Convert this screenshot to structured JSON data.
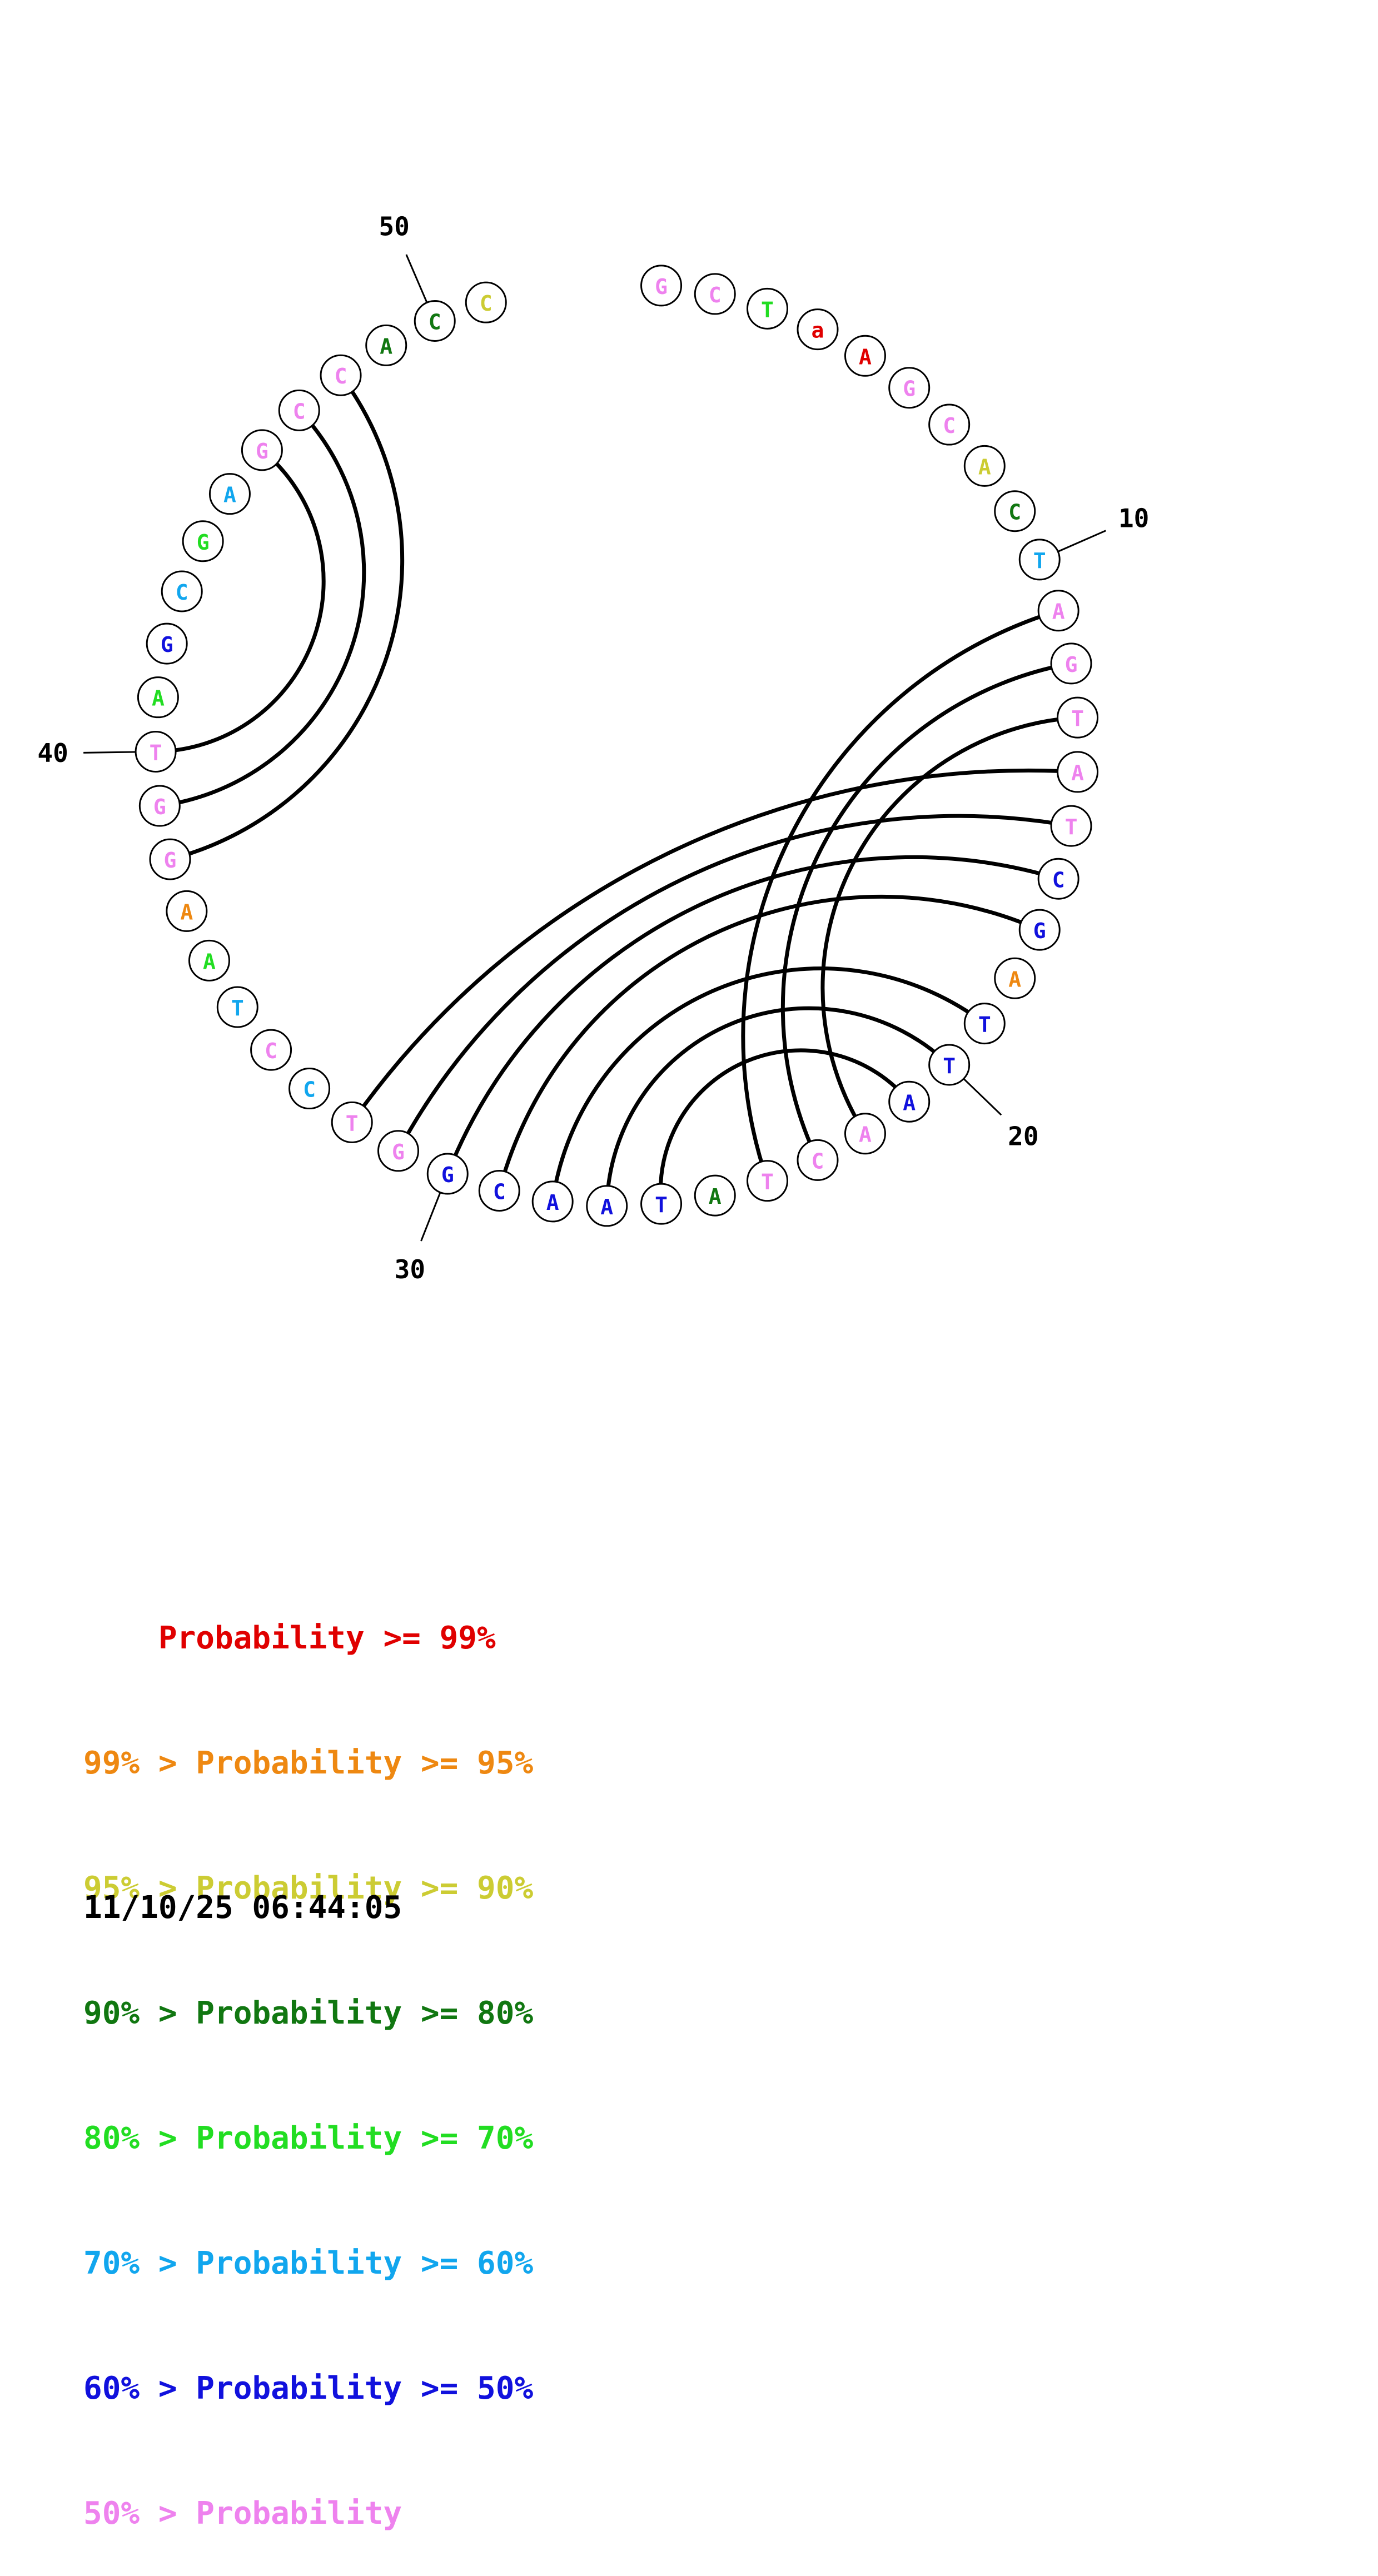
{
  "sequence": [
    {
      "n": 1,
      "base": "G",
      "color": "#ee82ee"
    },
    {
      "n": 2,
      "base": "C",
      "color": "#ee82ee"
    },
    {
      "n": 3,
      "base": "T",
      "color": "#22dd22"
    },
    {
      "n": 4,
      "base": "a",
      "color": "#e00000"
    },
    {
      "n": 5,
      "base": "A",
      "color": "#e00000"
    },
    {
      "n": 6,
      "base": "G",
      "color": "#ee82ee"
    },
    {
      "n": 7,
      "base": "C",
      "color": "#ee82ee"
    },
    {
      "n": 8,
      "base": "A",
      "color": "#cccc33"
    },
    {
      "n": 9,
      "base": "C",
      "color": "#117711"
    },
    {
      "n": 10,
      "base": "T",
      "color": "#11a6ee"
    },
    {
      "n": 11,
      "base": "A",
      "color": "#ee82ee"
    },
    {
      "n": 12,
      "base": "G",
      "color": "#ee82ee"
    },
    {
      "n": 13,
      "base": "T",
      "color": "#ee82ee"
    },
    {
      "n": 14,
      "base": "A",
      "color": "#ee82ee"
    },
    {
      "n": 15,
      "base": "T",
      "color": "#ee82ee"
    },
    {
      "n": 16,
      "base": "C",
      "color": "#1111dd"
    },
    {
      "n": 17,
      "base": "G",
      "color": "#1111dd"
    },
    {
      "n": 18,
      "base": "A",
      "color": "#ee8811"
    },
    {
      "n": 19,
      "base": "T",
      "color": "#1111dd"
    },
    {
      "n": 20,
      "base": "T",
      "color": "#1111dd"
    },
    {
      "n": 21,
      "base": "A",
      "color": "#1111dd"
    },
    {
      "n": 22,
      "base": "A",
      "color": "#ee82ee"
    },
    {
      "n": 23,
      "base": "C",
      "color": "#ee82ee"
    },
    {
      "n": 24,
      "base": "T",
      "color": "#ee82ee"
    },
    {
      "n": 25,
      "base": "A",
      "color": "#117711"
    },
    {
      "n": 26,
      "base": "T",
      "color": "#1111dd"
    },
    {
      "n": 27,
      "base": "A",
      "color": "#1111dd"
    },
    {
      "n": 28,
      "base": "A",
      "color": "#1111dd"
    },
    {
      "n": 29,
      "base": "C",
      "color": "#1111dd"
    },
    {
      "n": 30,
      "base": "G",
      "color": "#1111dd"
    },
    {
      "n": 31,
      "base": "G",
      "color": "#ee82ee"
    },
    {
      "n": 32,
      "base": "T",
      "color": "#ee82ee"
    },
    {
      "n": 33,
      "base": "C",
      "color": "#11a6ee"
    },
    {
      "n": 34,
      "base": "C",
      "color": "#ee82ee"
    },
    {
      "n": 35,
      "base": "T",
      "color": "#11a6ee"
    },
    {
      "n": 36,
      "base": "A",
      "color": "#22dd22"
    },
    {
      "n": 37,
      "base": "A",
      "color": "#ee8811"
    },
    {
      "n": 38,
      "base": "G",
      "color": "#ee82ee"
    },
    {
      "n": 39,
      "base": "G",
      "color": "#ee82ee"
    },
    {
      "n": 40,
      "base": "T",
      "color": "#ee82ee"
    },
    {
      "n": 41,
      "base": "A",
      "color": "#22dd22"
    },
    {
      "n": 42,
      "base": "G",
      "color": "#1111dd"
    },
    {
      "n": 43,
      "base": "C",
      "color": "#11a6ee"
    },
    {
      "n": 44,
      "base": "G",
      "color": "#22dd22"
    },
    {
      "n": 45,
      "base": "A",
      "color": "#11a6ee"
    },
    {
      "n": 46,
      "base": "G",
      "color": "#ee82ee"
    },
    {
      "n": 47,
      "base": "C",
      "color": "#ee82ee"
    },
    {
      "n": 48,
      "base": "C",
      "color": "#ee82ee"
    },
    {
      "n": 49,
      "base": "A",
      "color": "#117711"
    },
    {
      "n": 50,
      "base": "C",
      "color": "#117711"
    },
    {
      "n": 51,
      "base": "C",
      "color": "#cccc33"
    }
  ],
  "pairs": [
    [
      11,
      24
    ],
    [
      12,
      23
    ],
    [
      13,
      22
    ],
    [
      14,
      32
    ],
    [
      15,
      31
    ],
    [
      16,
      30
    ],
    [
      17,
      29
    ],
    [
      19,
      28
    ],
    [
      20,
      27
    ],
    [
      21,
      26
    ],
    [
      40,
      46
    ],
    [
      39,
      47
    ],
    [
      38,
      48
    ]
  ],
  "tick_labels": [
    {
      "n": 10,
      "label": "10"
    },
    {
      "n": 20,
      "label": "20"
    },
    {
      "n": 30,
      "label": "30"
    },
    {
      "n": 40,
      "label": "40"
    },
    {
      "n": 50,
      "label": "50"
    }
  ],
  "legend": [
    {
      "prefix": "    ",
      "label": "Probability >= 99%",
      "color": "#e00000"
    },
    {
      "prefix": "99% > ",
      "label": "Probability >= 95%",
      "color": "#ee8811"
    },
    {
      "prefix": "95% > ",
      "label": "Probability >= 90%",
      "color": "#cccc33"
    },
    {
      "prefix": "90% > ",
      "label": "Probability >= 80%",
      "color": "#117711"
    },
    {
      "prefix": "80% > ",
      "label": "Probability >= 70%",
      "color": "#22dd22"
    },
    {
      "prefix": "70% > ",
      "label": "Probability >= 60%",
      "color": "#11a6ee"
    },
    {
      "prefix": "60% > ",
      "label": "Probability >= 50%",
      "color": "#1111dd"
    },
    {
      "prefix": "50% > ",
      "label": "Probability",
      "color": "#ee82ee"
    }
  ],
  "timestamp": "11/10/25 06:44:05"
}
